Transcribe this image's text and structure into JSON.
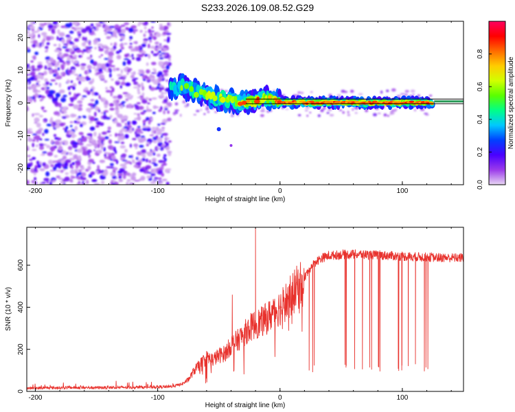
{
  "figure_title": "S233.2026.109.08.52.G29",
  "chart_data": [
    {
      "type": "heatmap",
      "title": "S233.2026.109.08.52.G29",
      "xlabel": "Height of straight line (km)",
      "ylabel": "Frequency (Hz)",
      "xlim": [
        -207,
        150
      ],
      "ylim": [
        -25,
        25
      ],
      "xticks": [
        -200,
        -100,
        0,
        100
      ],
      "yticks": [
        -20,
        -10,
        0,
        10,
        20
      ],
      "xtick_labels": [
        "-200",
        "-100",
        "0",
        "100"
      ],
      "ytick_labels": [
        "-20",
        "-10",
        "0",
        "10",
        "20"
      ],
      "colorbar": {
        "label": "Normalized spectral amplitude",
        "range": [
          0,
          1
        ],
        "ticks": [
          "0.0",
          "0.2",
          "0.4",
          "0.6",
          "0.8"
        ],
        "tick_values": [
          0.0,
          0.2,
          0.4,
          0.6,
          0.8
        ],
        "colors": [
          "#e8d7f3",
          "#9b3bea",
          "#4a00ff",
          "#0040ff",
          "#00c8ff",
          "#00ff88",
          "#5aff00",
          "#d2ff00",
          "#ffcc00",
          "#ff6a00",
          "#ff0000",
          "#ff0060"
        ]
      },
      "signal_track": {
        "x": [
          -90,
          -80,
          -70,
          -60,
          -50,
          -40,
          -30,
          -20,
          -10,
          0,
          20,
          50,
          80,
          110,
          125,
          150
        ],
        "frequency": [
          4,
          5,
          3.5,
          2.5,
          1.5,
          0.8,
          0.3,
          0.5,
          1.5,
          0.3,
          0.1,
          0.1,
          0.1,
          0.1,
          0.1,
          0.1
        ],
        "amplitude": [
          0.3,
          0.45,
          0.5,
          0.55,
          0.5,
          0.6,
          0.65,
          0.7,
          0.6,
          0.8,
          0.85,
          0.88,
          0.9,
          0.85,
          0.8,
          0.0
        ],
        "model_line_hz": 0.5,
        "noise_floor_x_end": -90
      }
    },
    {
      "type": "line",
      "xlabel": "Height of straight line (km)",
      "ylabel": "SNR (10 * v/v)",
      "xlim": [
        -207,
        150
      ],
      "ylim": [
        0,
        780
      ],
      "xticks": [
        -200,
        -100,
        0,
        100
      ],
      "yticks": [
        0,
        200,
        400,
        600
      ],
      "xtick_labels": [
        "-200",
        "-100",
        "0",
        "100"
      ],
      "ytick_labels": [
        "0",
        "200",
        "400",
        "600"
      ],
      "color": "#e8322d",
      "series": [
        {
          "name": "SNR",
          "x": [
            -207,
            -190,
            -170,
            -150,
            -130,
            -110,
            -90,
            -80,
            -75,
            -70,
            -65,
            -60,
            -55,
            -50,
            -45,
            -40,
            -35,
            -30,
            -25,
            -20,
            -15,
            -10,
            -5,
            0,
            5,
            10,
            15,
            20,
            25,
            30,
            35,
            40,
            50,
            60,
            70,
            80,
            90,
            100,
            110,
            120,
            130,
            140,
            150
          ],
          "values": [
            15,
            17,
            18,
            18,
            19,
            20,
            22,
            35,
            55,
            100,
            130,
            160,
            150,
            170,
            180,
            220,
            240,
            270,
            300,
            320,
            330,
            350,
            380,
            400,
            430,
            460,
            500,
            540,
            590,
            620,
            635,
            645,
            650,
            652,
            650,
            648,
            645,
            642,
            640,
            638,
            636,
            635,
            635
          ]
        }
      ],
      "spikes": [
        {
          "x": -20,
          "value": 780
        },
        {
          "x": -39,
          "value": 460
        }
      ],
      "dropouts": {
        "x_start": 18,
        "x_end": 126,
        "min_value": 90
      }
    }
  ]
}
